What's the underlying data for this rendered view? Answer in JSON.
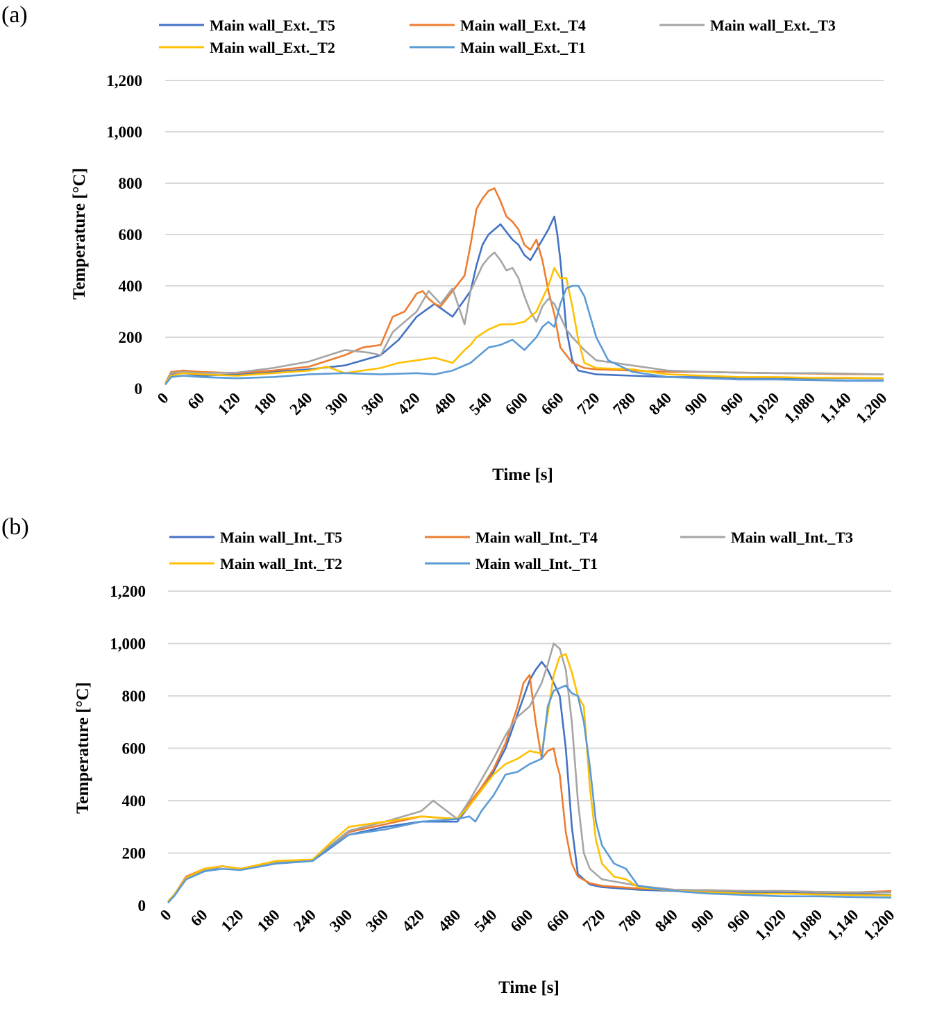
{
  "chart_data": [
    {
      "type": "line",
      "panel_label": "(a)",
      "title": "",
      "xlabel": "Time [s]",
      "ylabel": "Temperature [°C]",
      "xlim": [
        0,
        1200
      ],
      "ylim": [
        0,
        1200
      ],
      "x_ticks": [
        "0",
        "60",
        "120",
        "180",
        "240",
        "300",
        "360",
        "420",
        "480",
        "540",
        "600",
        "660",
        "720",
        "780",
        "840",
        "900",
        "960",
        "1,020",
        "1,080",
        "1,140",
        "1,200"
      ],
      "y_ticks": [
        "0",
        "200",
        "400",
        "600",
        "800",
        "1,000",
        "1,200"
      ],
      "x_tick_values": [
        0,
        60,
        120,
        180,
        240,
        300,
        360,
        420,
        480,
        540,
        600,
        660,
        720,
        780,
        840,
        900,
        960,
        1020,
        1080,
        1140,
        1200
      ],
      "y_tick_values": [
        0,
        200,
        400,
        600,
        800,
        1000,
        1200
      ],
      "legend_position": "top",
      "series": [
        {
          "name": "Main wall_Ext._T5",
          "color": "#4472c4",
          "x": [
            0,
            10,
            30,
            60,
            120,
            180,
            240,
            300,
            360,
            390,
            420,
            450,
            480,
            510,
            520,
            530,
            540,
            550,
            560,
            570,
            580,
            590,
            600,
            610,
            620,
            630,
            640,
            650,
            655,
            660,
            670,
            680,
            690,
            720,
            780,
            840,
            900,
            960,
            1020,
            1080,
            1140,
            1200
          ],
          "y": [
            20,
            55,
            60,
            50,
            55,
            65,
            75,
            90,
            130,
            190,
            280,
            330,
            280,
            380,
            480,
            560,
            600,
            620,
            640,
            610,
            580,
            560,
            520,
            500,
            540,
            580,
            620,
            670,
            600,
            500,
            230,
            110,
            70,
            55,
            50,
            45,
            45,
            42,
            42,
            40,
            40,
            38
          ]
        },
        {
          "name": "Main wall_Ext._T4",
          "color": "#ed7d31",
          "x": [
            0,
            10,
            30,
            60,
            120,
            180,
            240,
            300,
            330,
            360,
            380,
            400,
            420,
            430,
            440,
            450,
            460,
            480,
            500,
            510,
            520,
            530,
            540,
            550,
            560,
            570,
            580,
            590,
            600,
            610,
            620,
            630,
            640,
            650,
            660,
            680,
            700,
            720,
            780,
            840,
            900,
            960,
            1020,
            1080,
            1140,
            1200
          ],
          "y": [
            20,
            65,
            70,
            65,
            60,
            70,
            85,
            130,
            160,
            170,
            280,
            300,
            370,
            380,
            350,
            330,
            320,
            380,
            440,
            560,
            700,
            740,
            770,
            780,
            730,
            670,
            650,
            620,
            560,
            540,
            580,
            500,
            380,
            290,
            160,
            100,
            80,
            75,
            70,
            65,
            65,
            62,
            60,
            58,
            56,
            55
          ]
        },
        {
          "name": "Main wall_Ext._T3",
          "color": "#a5a5a5",
          "x": [
            0,
            10,
            30,
            60,
            120,
            180,
            240,
            300,
            340,
            360,
            380,
            400,
            420,
            440,
            460,
            480,
            500,
            510,
            520,
            530,
            540,
            550,
            560,
            570,
            580,
            590,
            600,
            610,
            620,
            630,
            640,
            650,
            660,
            670,
            680,
            700,
            720,
            780,
            840,
            900,
            960,
            1020,
            1080,
            1140,
            1200
          ],
          "y": [
            20,
            60,
            65,
            60,
            62,
            80,
            105,
            150,
            140,
            130,
            220,
            260,
            300,
            380,
            330,
            390,
            250,
            380,
            430,
            480,
            510,
            530,
            500,
            460,
            470,
            430,
            360,
            300,
            260,
            320,
            350,
            330,
            280,
            230,
            200,
            150,
            110,
            90,
            70,
            65,
            62,
            60,
            60,
            58,
            55
          ]
        },
        {
          "name": "Main wall_Ext._T2",
          "color": "#ffc000",
          "x": [
            0,
            10,
            30,
            60,
            120,
            180,
            240,
            270,
            300,
            330,
            360,
            390,
            420,
            450,
            480,
            500,
            510,
            520,
            540,
            560,
            580,
            600,
            620,
            630,
            640,
            650,
            660,
            670,
            680,
            690,
            700,
            720,
            780,
            840,
            900,
            960,
            1020,
            1080,
            1140,
            1200
          ],
          "y": [
            20,
            50,
            60,
            55,
            50,
            60,
            70,
            85,
            60,
            70,
            80,
            100,
            110,
            120,
            100,
            150,
            170,
            200,
            230,
            250,
            250,
            260,
            300,
            350,
            400,
            470,
            430,
            430,
            320,
            190,
            100,
            80,
            75,
            55,
            50,
            45,
            45,
            42,
            42,
            40
          ]
        },
        {
          "name": "Main wall_Ext._T1",
          "color": "#5b9bd5",
          "x": [
            0,
            10,
            30,
            60,
            120,
            180,
            240,
            300,
            360,
            420,
            450,
            480,
            510,
            540,
            560,
            580,
            600,
            620,
            630,
            640,
            650,
            660,
            670,
            680,
            690,
            700,
            710,
            720,
            740,
            780,
            840,
            900,
            960,
            1020,
            1080,
            1140,
            1200
          ],
          "y": [
            15,
            45,
            50,
            45,
            40,
            45,
            55,
            60,
            55,
            60,
            55,
            70,
            100,
            160,
            170,
            190,
            150,
            200,
            240,
            260,
            240,
            330,
            390,
            400,
            400,
            360,
            280,
            200,
            110,
            65,
            45,
            40,
            35,
            35,
            33,
            30,
            30
          ]
        }
      ]
    },
    {
      "type": "line",
      "panel_label": "(b)",
      "title": "",
      "xlabel": "Time [s]",
      "ylabel": "Temperature [°C]",
      "xlim": [
        0,
        1200
      ],
      "ylim": [
        0,
        1200
      ],
      "x_ticks": [
        "0",
        "60",
        "120",
        "180",
        "240",
        "300",
        "360",
        "420",
        "480",
        "540",
        "600",
        "660",
        "720",
        "780",
        "840",
        "900",
        "960",
        "1,020",
        "1,080",
        "1,140",
        "1,200"
      ],
      "y_ticks": [
        "0",
        "200",
        "400",
        "600",
        "800",
        "1,000",
        "1,200"
      ],
      "x_tick_values": [
        0,
        60,
        120,
        180,
        240,
        300,
        360,
        420,
        480,
        540,
        600,
        660,
        720,
        780,
        840,
        900,
        960,
        1020,
        1080,
        1140,
        1200
      ],
      "y_tick_values": [
        0,
        200,
        400,
        600,
        800,
        1000,
        1200
      ],
      "legend_position": "top",
      "series": [
        {
          "name": "Main wall_Int._T5",
          "color": "#4472c4",
          "x": [
            0,
            10,
            30,
            60,
            90,
            120,
            180,
            240,
            270,
            300,
            360,
            420,
            480,
            500,
            520,
            540,
            560,
            580,
            600,
            610,
            620,
            630,
            640,
            650,
            660,
            670,
            680,
            700,
            720,
            780,
            840,
            900,
            960,
            1020,
            1080,
            1140,
            1200
          ],
          "y": [
            15,
            40,
            100,
            130,
            150,
            140,
            160,
            170,
            220,
            270,
            300,
            320,
            320,
            380,
            440,
            510,
            600,
            730,
            860,
            900,
            930,
            900,
            850,
            800,
            600,
            300,
            120,
            80,
            70,
            60,
            55,
            52,
            50,
            48,
            45,
            45,
            40
          ]
        },
        {
          "name": "Main wall_Int._T4",
          "color": "#ed7d31",
          "x": [
            0,
            10,
            30,
            60,
            90,
            120,
            180,
            240,
            270,
            300,
            360,
            420,
            480,
            500,
            520,
            540,
            560,
            580,
            590,
            600,
            610,
            620,
            630,
            640,
            645,
            650,
            660,
            670,
            680,
            700,
            720,
            780,
            840,
            900,
            960,
            1020,
            1080,
            1140,
            1200
          ],
          "y": [
            15,
            40,
            110,
            140,
            150,
            140,
            165,
            170,
            230,
            280,
            310,
            340,
            330,
            390,
            450,
            520,
            620,
            760,
            850,
            880,
            700,
            560,
            590,
            600,
            540,
            500,
            280,
            160,
            110,
            85,
            75,
            65,
            60,
            58,
            55,
            55,
            52,
            50,
            55
          ]
        },
        {
          "name": "Main wall_Int._T3",
          "color": "#a5a5a5",
          "x": [
            0,
            10,
            30,
            60,
            90,
            120,
            180,
            240,
            270,
            300,
            360,
            420,
            440,
            480,
            500,
            520,
            540,
            560,
            580,
            600,
            620,
            630,
            640,
            650,
            660,
            670,
            680,
            690,
            700,
            720,
            780,
            840,
            900,
            960,
            1020,
            1080,
            1140,
            1200
          ],
          "y": [
            15,
            40,
            105,
            135,
            150,
            140,
            165,
            175,
            230,
            285,
            320,
            360,
            400,
            330,
            400,
            480,
            560,
            650,
            720,
            760,
            850,
            920,
            1000,
            980,
            900,
            700,
            400,
            200,
            140,
            100,
            75,
            60,
            58,
            55,
            55,
            52,
            50,
            50
          ]
        },
        {
          "name": "Main wall_Int._T2",
          "color": "#ffc000",
          "x": [
            0,
            10,
            30,
            60,
            90,
            120,
            180,
            240,
            270,
            300,
            360,
            420,
            480,
            500,
            520,
            540,
            560,
            580,
            600,
            620,
            640,
            650,
            660,
            670,
            680,
            690,
            700,
            710,
            720,
            740,
            760,
            780,
            840,
            900,
            960,
            1020,
            1080,
            1140,
            1200
          ],
          "y": [
            15,
            40,
            105,
            140,
            150,
            140,
            170,
            175,
            240,
            300,
            320,
            340,
            330,
            380,
            440,
            500,
            540,
            560,
            590,
            580,
            880,
            950,
            960,
            890,
            800,
            760,
            450,
            250,
            160,
            110,
            100,
            70,
            55,
            50,
            45,
            45,
            42,
            40,
            38
          ]
        },
        {
          "name": "Main wall_Int._T1",
          "color": "#5b9bd5",
          "x": [
            0,
            10,
            30,
            60,
            90,
            120,
            180,
            240,
            270,
            300,
            360,
            420,
            480,
            500,
            510,
            520,
            540,
            560,
            580,
            600,
            620,
            630,
            640,
            650,
            660,
            670,
            680,
            690,
            700,
            710,
            720,
            740,
            760,
            780,
            840,
            900,
            960,
            1020,
            1080,
            1140,
            1200
          ],
          "y": [
            10,
            35,
            100,
            130,
            140,
            135,
            160,
            170,
            225,
            270,
            290,
            320,
            330,
            340,
            320,
            360,
            420,
            500,
            510,
            540,
            560,
            760,
            820,
            830,
            840,
            810,
            800,
            700,
            530,
            320,
            230,
            160,
            140,
            75,
            55,
            45,
            40,
            35,
            35,
            32,
            30
          ]
        }
      ]
    }
  ]
}
